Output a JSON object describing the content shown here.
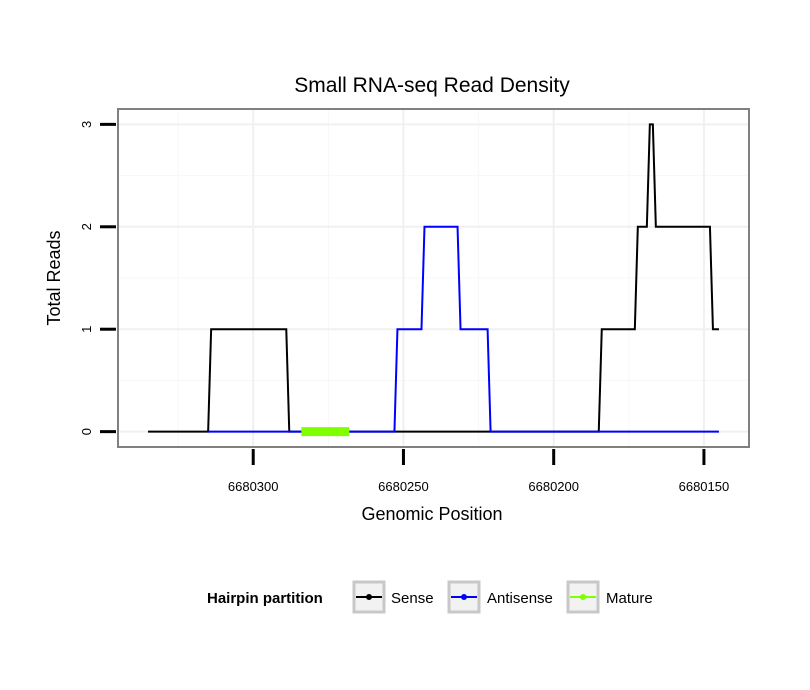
{
  "chart_data": {
    "type": "line",
    "title": "Small RNA-seq Read Density",
    "xlabel": "Genomic Position",
    "ylabel": "Total Reads",
    "x_reversed": true,
    "xlim": [
      6680345,
      6680135
    ],
    "ylim": [
      -0.15,
      3.15
    ],
    "x_ticks": [
      6680300,
      6680250,
      6680200,
      6680150
    ],
    "x_tick_labels": [
      "6680300",
      "6680250",
      "6680200",
      "6680150"
    ],
    "y_ticks": [
      0,
      1,
      2,
      3
    ],
    "y_tick_labels": [
      "0",
      "1",
      "2",
      "3"
    ],
    "grid": true,
    "legend": {
      "title": "Hairpin partition",
      "position": "bottom",
      "entries": [
        "Sense",
        "Antisense",
        "Mature"
      ]
    },
    "series": [
      {
        "name": "Sense",
        "color": "#000000",
        "points": [
          [
            6680335,
            0
          ],
          [
            6680315,
            0
          ],
          [
            6680314,
            1
          ],
          [
            6680289,
            1
          ],
          [
            6680288,
            0
          ],
          [
            6680253,
            0
          ],
          [
            6680252,
            0
          ],
          [
            6680185,
            0
          ],
          [
            6680184,
            1
          ],
          [
            6680173,
            1
          ],
          [
            6680172,
            2
          ],
          [
            6680169,
            2
          ],
          [
            6680168,
            3
          ],
          [
            6680167,
            3
          ],
          [
            6680166,
            2
          ],
          [
            6680148,
            2
          ],
          [
            6680147,
            1
          ],
          [
            6680145,
            1
          ]
        ]
      },
      {
        "name": "Antisense",
        "color": "#0000ff",
        "points": [
          [
            6680315,
            0
          ],
          [
            6680288,
            0
          ],
          [
            6680253,
            0
          ],
          [
            6680252,
            1
          ],
          [
            6680244,
            1
          ],
          [
            6680243,
            2
          ],
          [
            6680232,
            2
          ],
          [
            6680231,
            1
          ],
          [
            6680222,
            1
          ],
          [
            6680221,
            0
          ],
          [
            6680185,
            0
          ],
          [
            6680145,
            0
          ]
        ]
      },
      {
        "name": "Mature",
        "color": "#7fff00",
        "points": [
          [
            6680284,
            0
          ],
          [
            6680268,
            0
          ]
        ]
      }
    ]
  }
}
